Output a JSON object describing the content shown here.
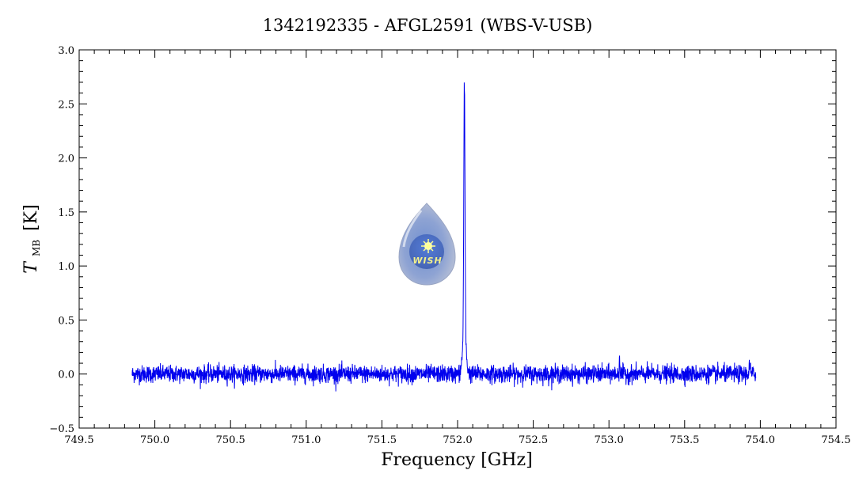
{
  "chart_data": {
    "type": "line",
    "title": "1342192335 - AFGL2591 (WBS-V-USB)",
    "xlabel": "Frequency [GHz]",
    "ylabel_main": "T",
    "ylabel_sub": "MB",
    "ylabel_unit": "[K]",
    "xlim": [
      749.5,
      754.5
    ],
    "ylim": [
      -0.5,
      3.0
    ],
    "x_ticks": [
      "749.5",
      "750.0",
      "750.5",
      "751.0",
      "751.5",
      "752.0",
      "752.5",
      "753.0",
      "753.5",
      "754.0",
      "754.5"
    ],
    "y_ticks": [
      "−0.5",
      "0.0",
      "0.5",
      "1.0",
      "1.5",
      "2.0",
      "2.5",
      "3.0"
    ],
    "grid": false,
    "series": [
      {
        "color": "#0000ee",
        "x_range": [
          749.85,
          753.97
        ],
        "baseline": 0.0,
        "noise_rms": 0.04,
        "line_peaks": [
          {
            "x": 752.045,
            "y": 2.87,
            "note": "main emission line"
          },
          {
            "x": 752.03,
            "y": 0.5
          },
          {
            "x": 752.055,
            "y": 2.6
          },
          {
            "x": 753.07,
            "y": 0.25
          },
          {
            "x": 753.93,
            "y": 0.2
          }
        ]
      }
    ]
  },
  "logo": {
    "name": "WISH",
    "text": "WISH"
  },
  "colors": {
    "series": "#0000ee",
    "axis": "#000000"
  }
}
